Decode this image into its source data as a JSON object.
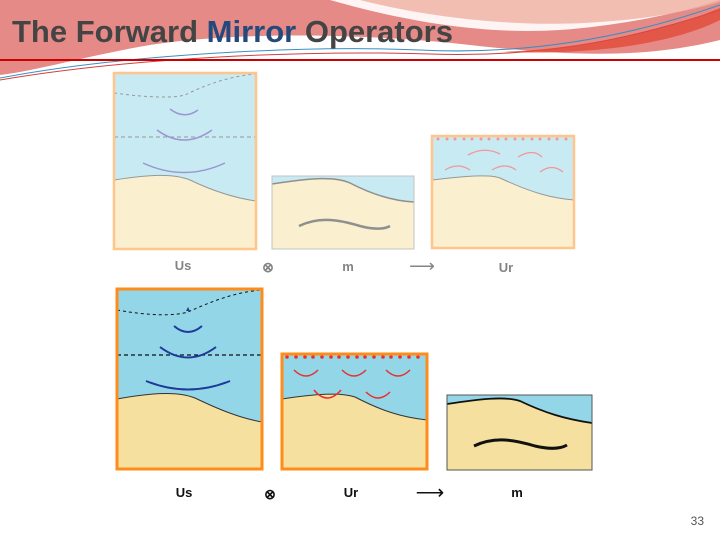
{
  "slide": {
    "title_part1": "The Forward ",
    "title_highlight": "Mirror",
    "title_part2": " Operators",
    "page_number": "33"
  },
  "diagram_top": {
    "labels": [
      "Us",
      "⊗",
      "m",
      "⟶",
      "Ur"
    ]
  },
  "diagram_bottom": {
    "labels": [
      "Us",
      "⊗",
      "Ur",
      "⟶",
      "m"
    ]
  },
  "colors": {
    "title_highlight": "#234a7a",
    "header_rule": "#cc0000",
    "water": "#92d6e8",
    "sand": "#f6e0a0",
    "frame": "#ff8c1a",
    "source_wave": "#1f3a9a",
    "receiver_wave": "#e83030"
  }
}
